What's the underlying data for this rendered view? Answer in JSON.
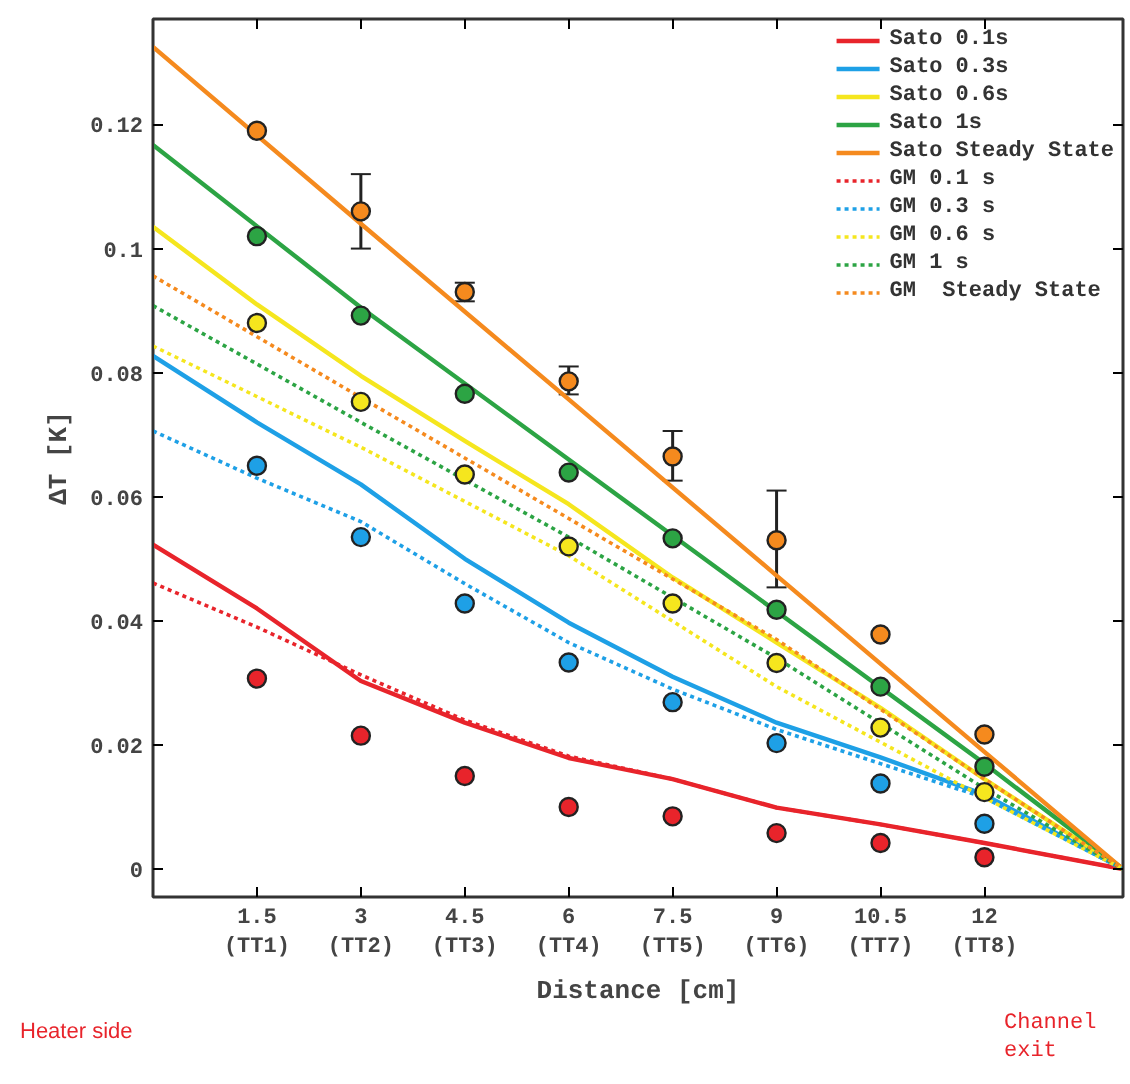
{
  "chart_data": {
    "type": "line",
    "xlabel": "Distance [cm]",
    "ylabel": "ΔT [K]",
    "xlim": [
      0,
      14
    ],
    "ylim": [
      -0.0045,
      0.137
    ],
    "xticks": [
      1.5,
      3,
      4.5,
      6,
      7.5,
      9,
      10.5,
      12
    ],
    "yticks": [
      0,
      0.02,
      0.04,
      0.06,
      0.08,
      0.1,
      0.12
    ],
    "grid": false,
    "legend": "top right",
    "annotations": [
      "Heater side",
      "Channel exit",
      "(TT1)",
      "(TT2)",
      "(TT3)",
      "(TT4)",
      "(TT5)",
      "(TT6)",
      "(TT7)",
      "(TT8)"
    ],
    "series": [
      {
        "name": "Sato 0.1s",
        "line_style": "solid",
        "color": "#e8242b",
        "x": [
          0,
          1.5,
          3,
          4.5,
          6,
          7.5,
          9,
          10.5,
          12,
          14
        ],
        "values": [
          0.0523,
          0.042,
          0.0303,
          0.0236,
          0.0179,
          0.0145,
          0.0099,
          0.0072,
          0.0042,
          0
        ]
      },
      {
        "name": "Sato 0.3s",
        "line_style": "solid",
        "color": "#1ea0e6",
        "x": [
          0,
          1.5,
          3,
          4.5,
          6,
          7.5,
          9,
          10.5,
          12,
          14
        ],
        "values": [
          0.0827,
          0.072,
          0.062,
          0.05,
          0.0397,
          0.031,
          0.0236,
          0.018,
          0.012,
          0
        ]
      },
      {
        "name": "Sato 0.6s",
        "line_style": "solid",
        "color": "#f5e61e",
        "x": [
          0,
          1.5,
          3,
          4.5,
          6,
          7.5,
          9,
          10.5,
          12,
          14
        ],
        "values": [
          0.1035,
          0.091,
          0.0795,
          0.069,
          0.0588,
          0.047,
          0.0365,
          0.026,
          0.0145,
          0
        ]
      },
      {
        "name": "Sato 1s",
        "line_style": "solid",
        "color": "#2ca444",
        "x": [
          0,
          3,
          6,
          9,
          12,
          14
        ],
        "values": [
          0.1167,
          0.0905,
          0.066,
          0.0415,
          0.017,
          0
        ]
      },
      {
        "name": "Sato Steady State",
        "line_style": "solid",
        "color": "#f58a1e",
        "x": [
          0,
          3,
          6,
          9,
          12,
          14
        ],
        "values": [
          0.1325,
          0.104,
          0.0757,
          0.0473,
          0.0189,
          0
        ]
      },
      {
        "name": "GM 0.1 s",
        "line_style": "dotted",
        "color": "#e8242b",
        "x": [
          0,
          1.5,
          3,
          4.5,
          6,
          7.5,
          9,
          10.5,
          12,
          14
        ],
        "values": [
          0.0461,
          0.039,
          0.0313,
          0.024,
          0.0182,
          0.0145,
          0.0099,
          0.0072,
          0.0042,
          0
        ]
      },
      {
        "name": "GM 0.3 s",
        "line_style": "dotted",
        "color": "#1ea0e6",
        "x": [
          0,
          1.5,
          3,
          4.5,
          6,
          7.5,
          9,
          10.5,
          12,
          14
        ],
        "values": [
          0.0706,
          0.063,
          0.056,
          0.046,
          0.0365,
          0.029,
          0.0225,
          0.017,
          0.0115,
          0
        ]
      },
      {
        "name": "GM 0.6 s",
        "line_style": "dotted",
        "color": "#f5e61e",
        "x": [
          0,
          3,
          6,
          9,
          12,
          14
        ],
        "values": [
          0.0843,
          0.068,
          0.0505,
          0.0294,
          0.0115,
          0
        ]
      },
      {
        "name": "GM 1 s",
        "line_style": "dotted",
        "color": "#2ca444",
        "x": [
          0,
          3,
          6,
          9,
          12,
          14
        ],
        "values": [
          0.0908,
          0.072,
          0.0535,
          0.034,
          0.013,
          0
        ]
      },
      {
        "name": "GM  Steady State",
        "line_style": "dotted",
        "color": "#f58a1e",
        "x": [
          0,
          3,
          6,
          9,
          12,
          14
        ],
        "values": [
          0.0956,
          0.076,
          0.0565,
          0.037,
          0.0145,
          0
        ]
      },
      {
        "type": "scatter",
        "marker": "circle",
        "color": "#e8242b",
        "x": [
          1.5,
          3,
          4.5,
          6,
          7.5,
          9,
          10.5,
          12
        ],
        "values": [
          0.0307,
          0.0215,
          0.015,
          0.01,
          0.0085,
          0.0058,
          0.0042,
          0.0019
        ]
      },
      {
        "type": "scatter",
        "marker": "circle",
        "color": "#1ea0e6",
        "x": [
          1.5,
          3,
          4.5,
          6,
          7.5,
          9,
          10.5,
          12
        ],
        "values": [
          0.065,
          0.0535,
          0.0428,
          0.0333,
          0.0269,
          0.0203,
          0.0138,
          0.0073
        ]
      },
      {
        "type": "scatter",
        "marker": "circle",
        "color": "#f5e61e",
        "x": [
          1.5,
          3,
          4.5,
          6,
          7.5,
          9,
          10.5,
          12
        ],
        "values": [
          0.088,
          0.0753,
          0.0636,
          0.052,
          0.0428,
          0.0332,
          0.0228,
          0.0124
        ]
      },
      {
        "type": "scatter",
        "marker": "circle",
        "color": "#2ca444",
        "x": [
          1.5,
          3,
          4.5,
          6,
          7.5,
          9,
          10.5,
          12
        ],
        "values": [
          0.102,
          0.0892,
          0.0766,
          0.0639,
          0.0533,
          0.0418,
          0.0294,
          0.0165
        ]
      },
      {
        "type": "scatter",
        "marker": "circle",
        "color": "#f58a1e",
        "x": [
          1.5,
          3,
          4.5,
          6,
          7.5,
          9,
          10.5,
          12
        ],
        "values": [
          0.119,
          0.106,
          0.093,
          0.0786,
          0.0665,
          0.053,
          0.0378,
          0.0217
        ],
        "errors": [
          null,
          [
            0.1,
            0.112
          ],
          [
            0.0915,
            0.0945
          ],
          [
            0.0765,
            0.081
          ],
          [
            0.0626,
            0.0706
          ],
          [
            0.0454,
            0.061
          ],
          null,
          null
        ]
      }
    ]
  }
}
